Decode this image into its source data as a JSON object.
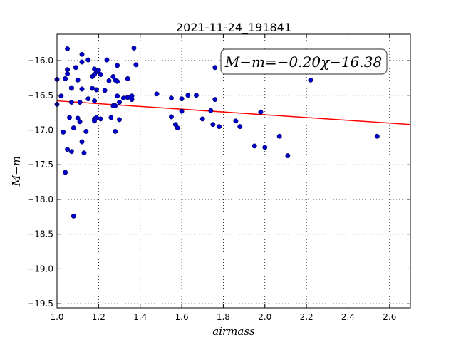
{
  "chart_data": {
    "type": "scatter",
    "title": "2021-11-24_191841",
    "xlabel": "airmass",
    "ylabel": "M−m",
    "xlim": [
      1.0,
      2.7
    ],
    "ylim": [
      -19.56,
      -15.62
    ],
    "x_ticks": [
      "1.0",
      "1.2",
      "1.4",
      "1.6",
      "1.8",
      "2.0",
      "2.2",
      "2.4",
      "2.6"
    ],
    "y_ticks": [
      "−16.0",
      "−16.5",
      "−17.0",
      "−17.5",
      "−18.0",
      "−18.5",
      "−19.0",
      "−19.5"
    ],
    "x_tick_values": [
      1.0,
      1.2,
      1.4,
      1.6,
      1.8,
      2.0,
      2.2,
      2.4,
      2.6
    ],
    "y_tick_values": [
      -16.0,
      -16.5,
      -17.0,
      -17.5,
      -18.0,
      -18.5,
      -19.0,
      -19.5
    ],
    "grid": true,
    "annotation": "M−m=−0.20χ−16.38",
    "fit": {
      "slope": -0.2,
      "intercept": -16.38,
      "color": "#ff0000"
    },
    "point_color": "#0000cc",
    "points": [
      [
        1.0,
        -16.27
      ],
      [
        1.0,
        -16.63
      ],
      [
        1.02,
        -16.51
      ],
      [
        1.03,
        -17.03
      ],
      [
        1.04,
        -17.61
      ],
      [
        1.04,
        -16.26
      ],
      [
        1.05,
        -15.83
      ],
      [
        1.05,
        -16.13
      ],
      [
        1.05,
        -16.19
      ],
      [
        1.05,
        -17.28
      ],
      [
        1.06,
        -16.82
      ],
      [
        1.07,
        -16.4
      ],
      [
        1.07,
        -16.39
      ],
      [
        1.07,
        -16.6
      ],
      [
        1.07,
        -17.31
      ],
      [
        1.08,
        -18.24
      ],
      [
        1.08,
        -16.97
      ],
      [
        1.09,
        -16.1
      ],
      [
        1.1,
        -16.28
      ],
      [
        1.1,
        -16.83
      ],
      [
        1.11,
        -16.6
      ],
      [
        1.11,
        -16.88
      ],
      [
        1.12,
        -15.91
      ],
      [
        1.12,
        -16.02
      ],
      [
        1.12,
        -16.41
      ],
      [
        1.12,
        -17.17
      ],
      [
        1.13,
        -17.33
      ],
      [
        1.14,
        -17.02
      ],
      [
        1.15,
        -16.55
      ],
      [
        1.15,
        -15.99
      ],
      [
        1.17,
        -16.4
      ],
      [
        1.17,
        -16.23
      ],
      [
        1.18,
        -16.12
      ],
      [
        1.18,
        -16.2
      ],
      [
        1.18,
        -16.58
      ],
      [
        1.18,
        -16.84
      ],
      [
        1.18,
        -16.87
      ],
      [
        1.19,
        -16.16
      ],
      [
        1.19,
        -16.42
      ],
      [
        1.19,
        -16.82
      ],
      [
        1.2,
        -16.14
      ],
      [
        1.21,
        -16.2
      ],
      [
        1.21,
        -16.84
      ],
      [
        1.23,
        -16.43
      ],
      [
        1.24,
        -15.99
      ],
      [
        1.25,
        -16.29
      ],
      [
        1.26,
        -16.82
      ],
      [
        1.27,
        -16.65
      ],
      [
        1.27,
        -16.23
      ],
      [
        1.28,
        -17.02
      ],
      [
        1.28,
        -16.65
      ],
      [
        1.28,
        -16.28
      ],
      [
        1.29,
        -16.51
      ],
      [
        1.29,
        -16.3
      ],
      [
        1.29,
        -16.07
      ],
      [
        1.3,
        -16.6
      ],
      [
        1.3,
        -16.85
      ],
      [
        1.32,
        -16.54
      ],
      [
        1.34,
        -16.26
      ],
      [
        1.34,
        -16.53
      ],
      [
        1.36,
        -16.56
      ],
      [
        1.36,
        -16.51
      ],
      [
        1.37,
        -15.82
      ],
      [
        1.38,
        -16.06
      ],
      [
        1.48,
        -16.48
      ],
      [
        1.55,
        -16.54
      ],
      [
        1.55,
        -16.81
      ],
      [
        1.57,
        -16.92
      ],
      [
        1.58,
        -16.97
      ],
      [
        1.6,
        -16.55
      ],
      [
        1.6,
        -16.73
      ],
      [
        1.63,
        -16.5
      ],
      [
        1.67,
        -16.5
      ],
      [
        1.7,
        -16.84
      ],
      [
        1.74,
        -16.72
      ],
      [
        1.75,
        -16.92
      ],
      [
        1.76,
        -16.56
      ],
      [
        1.76,
        -16.1
      ],
      [
        1.78,
        -16.95
      ],
      [
        1.86,
        -16.87
      ],
      [
        1.88,
        -16.95
      ],
      [
        1.95,
        -17.23
      ],
      [
        1.98,
        -16.74
      ],
      [
        2.0,
        -17.25
      ],
      [
        2.07,
        -17.09
      ],
      [
        2.11,
        -17.37
      ],
      [
        2.22,
        -16.28
      ],
      [
        2.54,
        -17.09
      ]
    ]
  }
}
